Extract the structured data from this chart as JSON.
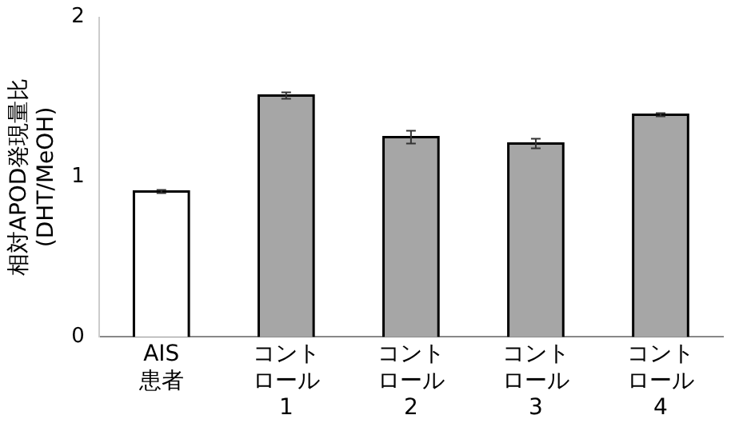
{
  "chart_data": {
    "type": "bar",
    "ylabel": "相対APOD発現量比\n(DHT/MeOH)",
    "categories": [
      "AIS患者",
      "コントロール1",
      "コントロール2",
      "コントロール3",
      "コントロール4"
    ],
    "values": [
      0.91,
      1.51,
      1.25,
      1.21,
      1.39
    ],
    "errors": [
      0.01,
      0.02,
      0.04,
      0.03,
      0.01
    ],
    "colors": [
      "#ffffff",
      "#a6a6a6",
      "#a6a6a6",
      "#a6a6a6",
      "#a6a6a6"
    ],
    "ylim": [
      0,
      2
    ],
    "yticks": [
      0,
      1,
      2
    ],
    "grid": false,
    "legend": false
  }
}
